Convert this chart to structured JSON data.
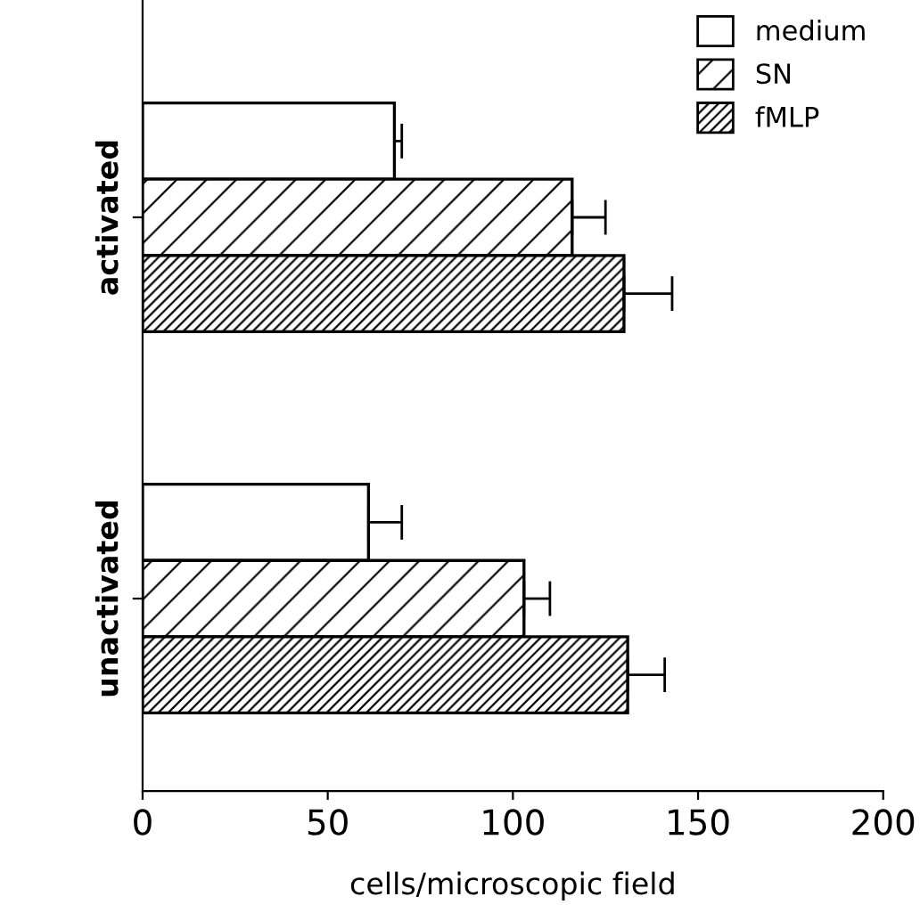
{
  "chart_data": {
    "type": "bar",
    "orientation": "horizontal",
    "categories": [
      "activated",
      "unactivated"
    ],
    "series": [
      {
        "name": "medium",
        "color": "#ffffff",
        "values": [
          68,
          61
        ],
        "errors": [
          [
            68,
            70
          ],
          [
            61,
            70
          ]
        ]
      },
      {
        "name": "SN",
        "color": "#000000",
        "values": [
          116,
          103
        ],
        "errors": [
          [
            116,
            125
          ],
          [
            103,
            110
          ]
        ]
      },
      {
        "name": "fMLP",
        "color": "#000000",
        "values": [
          130,
          131
        ],
        "errors": [
          [
            130,
            143
          ],
          [
            131,
            141
          ]
        ]
      }
    ],
    "xlabel": "cells/microscopic field",
    "xlim": [
      0,
      200
    ],
    "xticks": [
      0,
      50,
      100,
      150,
      200
    ],
    "grid": false,
    "legend": "top right"
  }
}
